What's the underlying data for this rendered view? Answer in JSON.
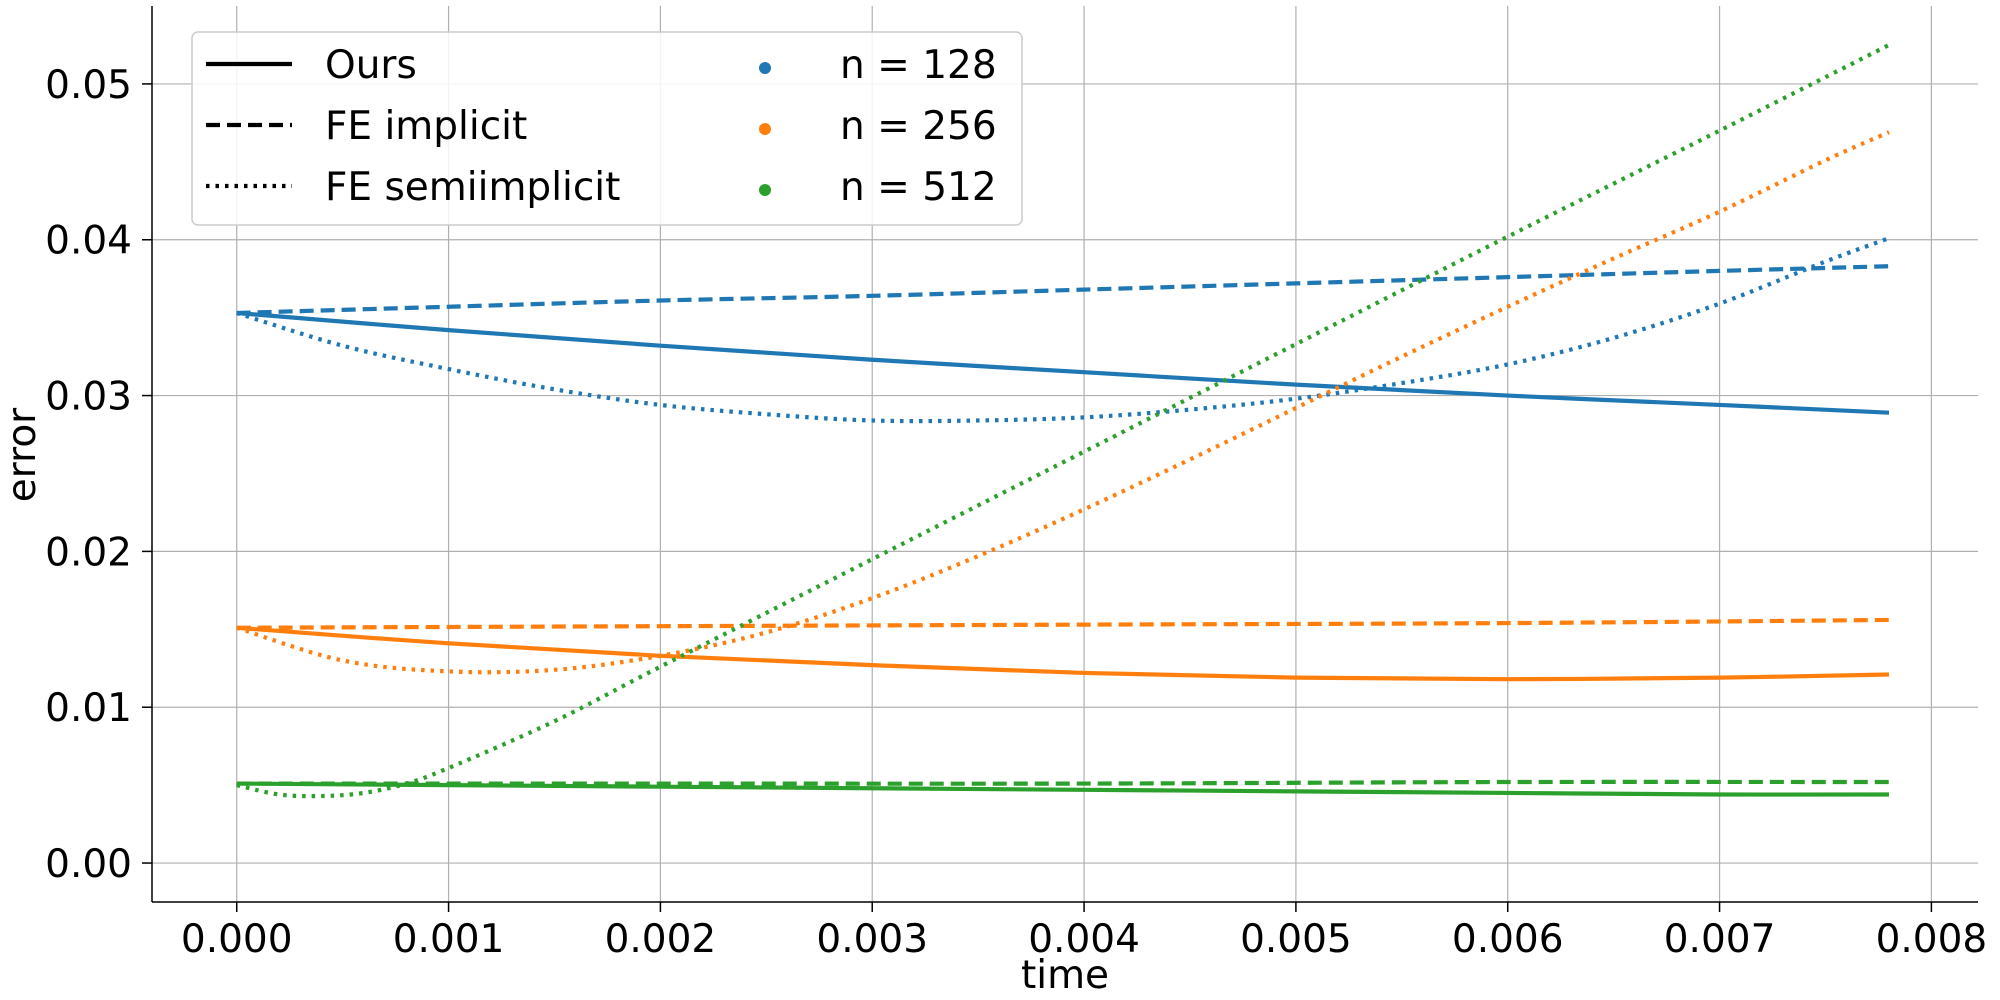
{
  "chart_data": {
    "type": "line",
    "xlabel": "time",
    "ylabel": "error",
    "xlim": [
      -0.0004,
      0.00822
    ],
    "ylim": [
      -0.0025,
      0.055
    ],
    "x_ticks": [
      "0.000",
      "0.001",
      "0.002",
      "0.003",
      "0.004",
      "0.005",
      "0.006",
      "0.007",
      "0.008"
    ],
    "x_tick_values": [
      0,
      0.001,
      0.002,
      0.003,
      0.004,
      0.005,
      0.006,
      0.007,
      0.008
    ],
    "y_ticks": [
      "0.00",
      "0.01",
      "0.02",
      "0.03",
      "0.04",
      "0.05"
    ],
    "y_tick_values": [
      0,
      0.01,
      0.02,
      0.03,
      0.04,
      0.05
    ],
    "grid": true,
    "legend_position": "top-left",
    "legend_styles": [
      {
        "label": "Ours",
        "dash": "solid"
      },
      {
        "label": "FE implicit",
        "dash": "dashed"
      },
      {
        "label": "FE semiimplicit",
        "dash": "dotted"
      }
    ],
    "legend_sizes": [
      {
        "label": "n = 128",
        "color": "#1f77b4"
      },
      {
        "label": "n = 256",
        "color": "#ff7f0e"
      },
      {
        "label": "n = 512",
        "color": "#2ca02c"
      }
    ],
    "series": [
      {
        "method": "Ours",
        "n": 128,
        "color": "#1f77b4",
        "dash": "solid",
        "x": [
          0,
          0.001,
          0.002,
          0.003,
          0.004,
          0.005,
          0.006,
          0.007,
          0.0078
        ],
        "y": [
          0.0353,
          0.0342,
          0.0332,
          0.0323,
          0.0315,
          0.0307,
          0.03,
          0.0294,
          0.0289
        ]
      },
      {
        "method": "FE implicit",
        "n": 128,
        "color": "#1f77b4",
        "dash": "dashed",
        "x": [
          0,
          0.001,
          0.002,
          0.003,
          0.004,
          0.005,
          0.006,
          0.007,
          0.0078
        ],
        "y": [
          0.0353,
          0.0357,
          0.0361,
          0.0364,
          0.0368,
          0.0372,
          0.0376,
          0.038,
          0.0383
        ]
      },
      {
        "method": "FE semiimplicit",
        "n": 128,
        "color": "#1f77b4",
        "dash": "dotted",
        "x": [
          0,
          0.0005,
          0.001,
          0.0015,
          0.002,
          0.0025,
          0.003,
          0.0035,
          0.004,
          0.0045,
          0.005,
          0.0055,
          0.006,
          0.0065,
          0.007,
          0.0075,
          0.0078
        ],
        "y": [
          0.0353,
          0.0332,
          0.0317,
          0.0304,
          0.0294,
          0.0288,
          0.0284,
          0.0284,
          0.0286,
          0.0291,
          0.0298,
          0.0308,
          0.032,
          0.0337,
          0.0359,
          0.0386,
          0.0401
        ]
      },
      {
        "method": "Ours",
        "n": 256,
        "color": "#ff7f0e",
        "dash": "solid",
        "x": [
          0,
          0.001,
          0.002,
          0.003,
          0.004,
          0.005,
          0.006,
          0.007,
          0.0078
        ],
        "y": [
          0.0151,
          0.0141,
          0.0133,
          0.0127,
          0.0122,
          0.0119,
          0.0118,
          0.0119,
          0.0121
        ]
      },
      {
        "method": "FE implicit",
        "n": 256,
        "color": "#ff7f0e",
        "dash": "dashed",
        "x": [
          0,
          0.002,
          0.004,
          0.006,
          0.0078
        ],
        "y": [
          0.0151,
          0.0152,
          0.0153,
          0.0154,
          0.0156
        ]
      },
      {
        "method": "FE semiimplicit",
        "n": 256,
        "color": "#ff7f0e",
        "dash": "dotted",
        "x": [
          0,
          0.0005,
          0.001,
          0.0015,
          0.002,
          0.0025,
          0.003,
          0.0035,
          0.004,
          0.0045,
          0.005,
          0.0055,
          0.006,
          0.0065,
          0.007,
          0.0075,
          0.0078
        ],
        "y": [
          0.0151,
          0.013,
          0.0123,
          0.0124,
          0.0133,
          0.0148,
          0.017,
          0.0197,
          0.0227,
          0.0259,
          0.0292,
          0.0325,
          0.0357,
          0.0388,
          0.0418,
          0.0451,
          0.0469
        ]
      },
      {
        "method": "Ours",
        "n": 512,
        "color": "#2ca02c",
        "dash": "solid",
        "x": [
          0,
          0.001,
          0.002,
          0.003,
          0.004,
          0.005,
          0.006,
          0.007,
          0.0078
        ],
        "y": [
          0.0051,
          0.005,
          0.0049,
          0.0048,
          0.0047,
          0.0046,
          0.0045,
          0.0044,
          0.0044
        ]
      },
      {
        "method": "FE implicit",
        "n": 512,
        "color": "#2ca02c",
        "dash": "dashed",
        "x": [
          0,
          0.002,
          0.004,
          0.006,
          0.0078
        ],
        "y": [
          0.0051,
          0.0051,
          0.0051,
          0.0052,
          0.0052
        ]
      },
      {
        "method": "FE semiimplicit",
        "n": 512,
        "color": "#2ca02c",
        "dash": "dotted",
        "x": [
          0,
          0.0002,
          0.0004,
          0.0006,
          0.0008,
          0.001,
          0.0015,
          0.002,
          0.003,
          0.004,
          0.005,
          0.006,
          0.007,
          0.0078
        ],
        "y": [
          0.005,
          0.0044,
          0.0043,
          0.0045,
          0.0051,
          0.0061,
          0.0091,
          0.0126,
          0.0195,
          0.0264,
          0.0333,
          0.0402,
          0.047,
          0.0525
        ]
      }
    ]
  }
}
